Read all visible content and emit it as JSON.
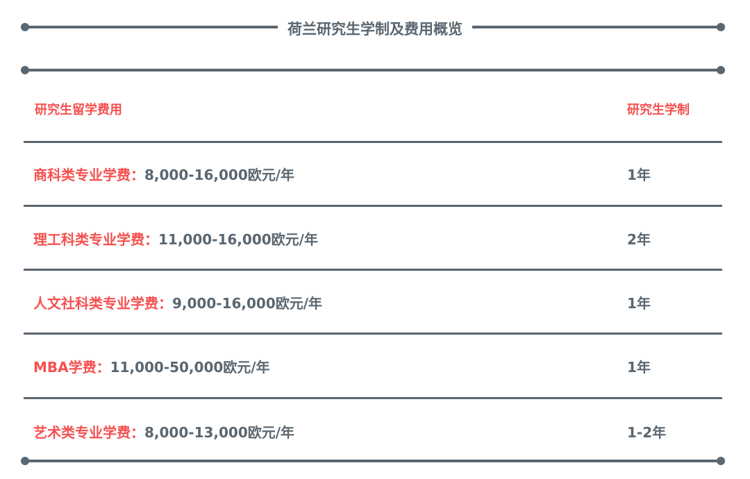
{
  "title": "荷兰研究生学制及费用概览",
  "header": {
    "fee_col": "研究生留学费用",
    "duration_col": "研究生学制"
  },
  "rows": [
    {
      "label": "商科类专业学费：",
      "fee": "8,000-16,000欧元/年",
      "duration": "1年"
    },
    {
      "label": "理工科类专业学费：",
      "fee": "11,000-16,000欧元/年",
      "duration": "2年"
    },
    {
      "label": "人文社科类专业学费：",
      "fee": "9,000-16,000欧元/年",
      "duration": "1年"
    },
    {
      "label": "MBA学费：",
      "fee": "11,000-50,000欧元/年",
      "duration": "1年"
    },
    {
      "label": "艺术类专业学费：",
      "fee": "8,000-13,000欧元/年",
      "duration": "1-2年"
    }
  ],
  "colors": {
    "accent": "#f5504f",
    "text": "#5a6670"
  }
}
